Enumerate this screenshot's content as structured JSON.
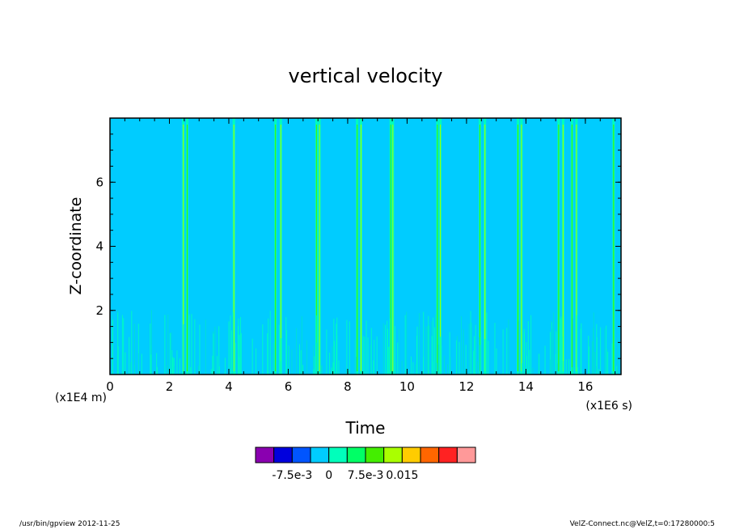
{
  "chart_data": {
    "type": "heatmap",
    "title": "vertical velocity",
    "xlabel": "Time",
    "ylabel": "Z-coordinate",
    "x_unit": "(x1E6 s)",
    "y_unit": "(x1E4 m)",
    "xlim": [
      0,
      17.2
    ],
    "ylim": [
      0,
      8
    ],
    "x_ticks": [
      "0",
      "2",
      "4",
      "6",
      "8",
      "10",
      "12",
      "14",
      "16"
    ],
    "y_ticks": [
      "2",
      "4",
      "6"
    ],
    "background_value": 0,
    "colorbar": {
      "colors": [
        "#8a00b0",
        "#0000dd",
        "#0055ff",
        "#00ccff",
        "#00ffbb",
        "#00ff66",
        "#44ee00",
        "#aaff00",
        "#ffcc00",
        "#ff6600",
        "#ff2222",
        "#ff9999"
      ],
      "tick_labels": [
        "-7.5e-3",
        "0",
        "7.5e-3",
        "0.015"
      ]
    },
    "updraft_columns_x": [
      2.47,
      2.6,
      4.17,
      5.57,
      5.75,
      6.95,
      7.05,
      8.32,
      8.45,
      9.45,
      9.52,
      11.02,
      11.12,
      12.45,
      12.62,
      13.73,
      13.85,
      15.1,
      15.25,
      15.55,
      15.7,
      16.95
    ]
  },
  "footer": {
    "left": "/usr/bin/gpview   2012-11-25",
    "right": "VelZ-Connect.nc@VelZ,t=0:17280000:5"
  }
}
